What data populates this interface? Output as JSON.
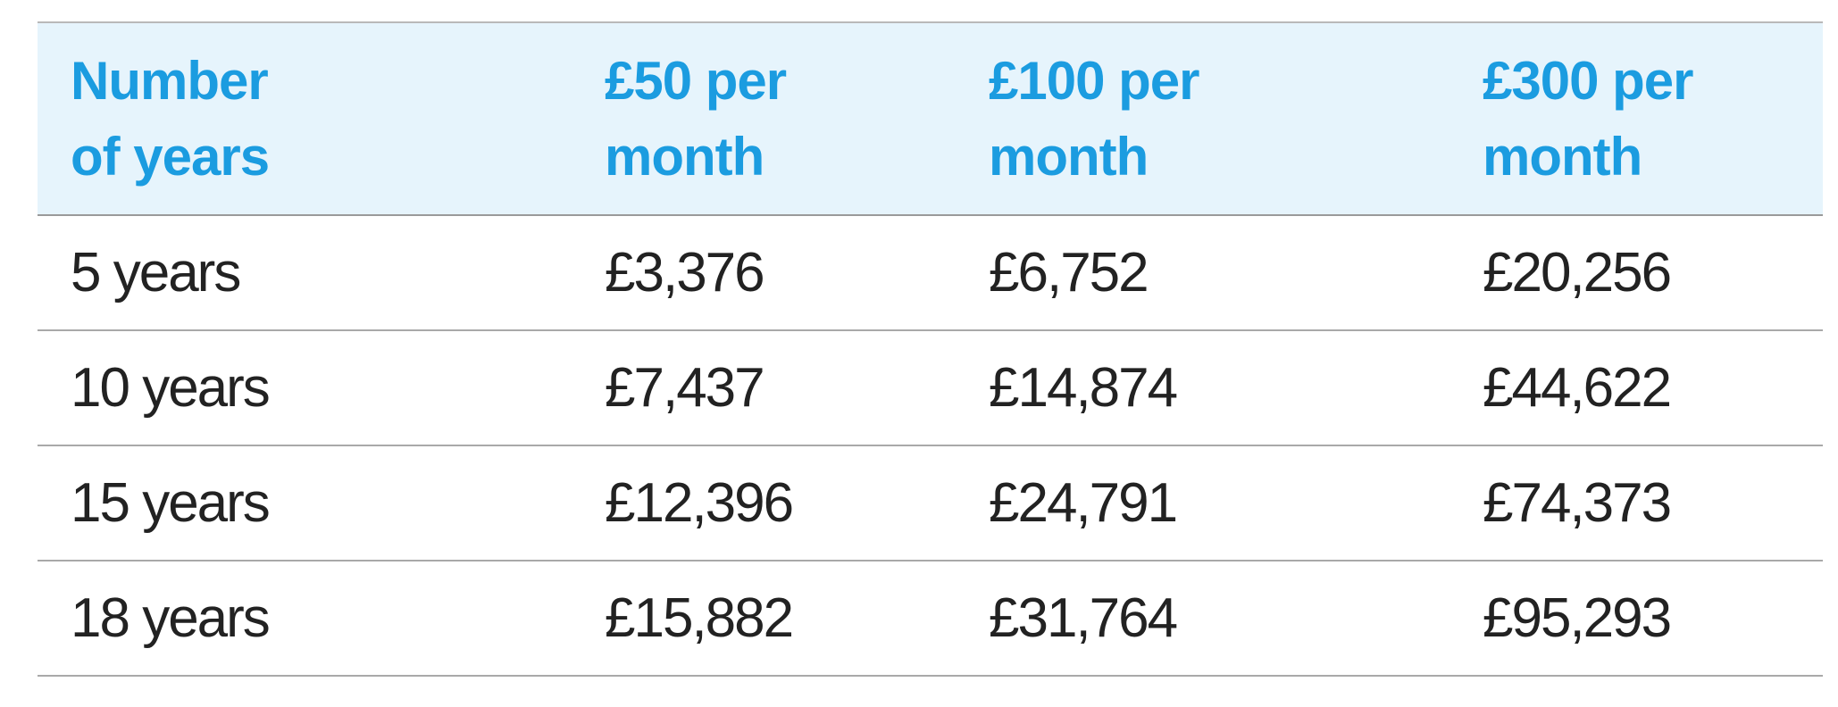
{
  "table": {
    "header": [
      "Number of years",
      "£50 per month",
      "£100 per month",
      "£300 per month"
    ],
    "rows": [
      [
        "5 years",
        "£3,376",
        "£6,752",
        "£20,256"
      ],
      [
        "10 years",
        "£7,437",
        "£14,874",
        "£44,622"
      ],
      [
        "15 years",
        "£12,396",
        "£24,791",
        "£74,373"
      ],
      [
        "18 years",
        "£15,882",
        "£31,764",
        "£95,293"
      ]
    ]
  }
}
